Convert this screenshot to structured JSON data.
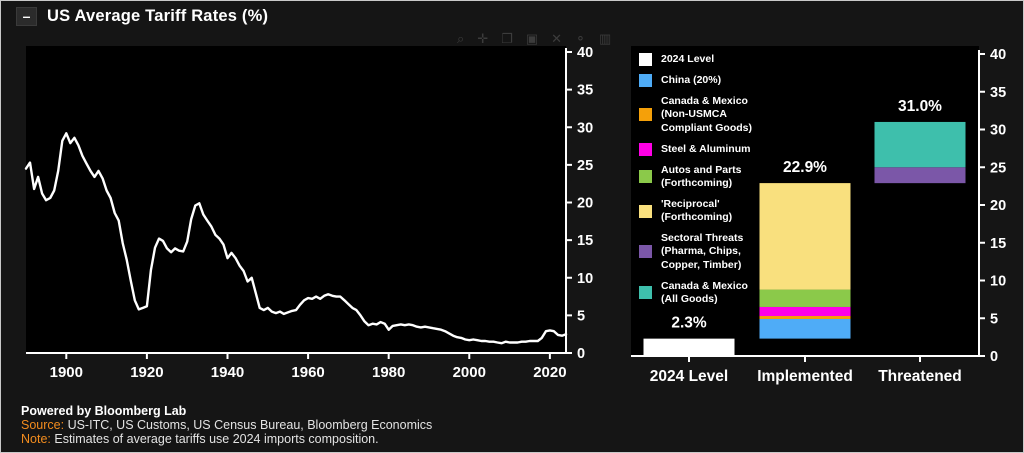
{
  "window": {
    "title": "US Average Tariff Rates (%)",
    "collapse_icon": "–"
  },
  "toolbar": {
    "icons": [
      {
        "name": "zoom-icon",
        "glyph": "⌕"
      },
      {
        "name": "pan-icon",
        "glyph": "✛"
      },
      {
        "name": "expand-icon",
        "glyph": "❐"
      },
      {
        "name": "reset-view-icon",
        "glyph": "▣"
      },
      {
        "name": "close-icon",
        "glyph": "✕"
      },
      {
        "name": "camera-icon",
        "glyph": "⚬"
      },
      {
        "name": "bar-chart-icon",
        "glyph": "▥"
      }
    ]
  },
  "chart_data": [
    {
      "type": "line",
      "title": "US Average Tariff Rates (%), 1890-2024",
      "line_color": "#ffffff",
      "xlim": [
        1890,
        2024
      ],
      "ylim": [
        0,
        40
      ],
      "xticks": [
        1900,
        1920,
        1940,
        1960,
        1980,
        2000,
        2020
      ],
      "yticks": [
        0,
        5,
        10,
        15,
        20,
        25,
        30,
        35,
        40
      ],
      "grid": false,
      "x": [
        1890,
        1891,
        1892,
        1893,
        1894,
        1895,
        1896,
        1897,
        1898,
        1899,
        1900,
        1901,
        1902,
        1903,
        1904,
        1905,
        1906,
        1907,
        1908,
        1909,
        1910,
        1911,
        1912,
        1913,
        1914,
        1915,
        1916,
        1917,
        1918,
        1919,
        1920,
        1921,
        1922,
        1923,
        1924,
        1925,
        1926,
        1927,
        1928,
        1929,
        1930,
        1931,
        1932,
        1933,
        1934,
        1935,
        1936,
        1937,
        1938,
        1939,
        1940,
        1941,
        1942,
        1943,
        1944,
        1945,
        1946,
        1947,
        1948,
        1949,
        1950,
        1951,
        1952,
        1953,
        1954,
        1955,
        1956,
        1957,
        1958,
        1959,
        1960,
        1961,
        1962,
        1963,
        1964,
        1965,
        1966,
        1967,
        1968,
        1969,
        1970,
        1971,
        1972,
        1973,
        1974,
        1975,
        1976,
        1977,
        1978,
        1979,
        1980,
        1981,
        1982,
        1983,
        1984,
        1985,
        1986,
        1987,
        1988,
        1989,
        1990,
        1991,
        1992,
        1993,
        1994,
        1995,
        1996,
        1997,
        1998,
        1999,
        2000,
        2001,
        2002,
        2003,
        2004,
        2005,
        2006,
        2007,
        2008,
        2009,
        2010,
        2011,
        2012,
        2013,
        2014,
        2015,
        2016,
        2017,
        2018,
        2019,
        2020,
        2021,
        2022,
        2023,
        2024
      ],
      "values": [
        24.5,
        25.3,
        21.8,
        23.4,
        21.2,
        20.3,
        20.6,
        21.6,
        24.2,
        28.2,
        29.2,
        27.9,
        28.6,
        27.6,
        26.2,
        25.2,
        24.2,
        23.4,
        24.2,
        23.2,
        21.6,
        20.6,
        18.6,
        17.6,
        14.6,
        12.4,
        9.6,
        7.0,
        5.8,
        6.0,
        6.2,
        11.0,
        14.0,
        15.2,
        14.9,
        13.9,
        13.4,
        13.9,
        13.6,
        13.5,
        14.8,
        17.8,
        19.6,
        19.9,
        18.4,
        17.6,
        16.8,
        15.7,
        15.2,
        14.4,
        12.6,
        13.3,
        12.6,
        11.6,
        10.9,
        9.5,
        10.0,
        8.0,
        6.0,
        5.7,
        6.0,
        5.5,
        5.3,
        5.5,
        5.2,
        5.4,
        5.6,
        5.7,
        6.4,
        7.0,
        7.3,
        7.2,
        7.5,
        7.2,
        7.6,
        7.8,
        7.6,
        7.5,
        7.5,
        7.0,
        6.5,
        6.0,
        5.7,
        5.0,
        4.2,
        3.7,
        3.9,
        3.8,
        4.1,
        3.9,
        3.1,
        3.6,
        3.7,
        3.8,
        3.7,
        3.8,
        3.7,
        3.5,
        3.4,
        3.5,
        3.4,
        3.3,
        3.2,
        3.1,
        2.9,
        2.6,
        2.3,
        2.1,
        2.0,
        1.8,
        1.7,
        1.8,
        1.7,
        1.6,
        1.6,
        1.5,
        1.5,
        1.4,
        1.3,
        1.5,
        1.4,
        1.4,
        1.4,
        1.5,
        1.5,
        1.6,
        1.6,
        1.6,
        2.0,
        2.9,
        3.0,
        2.9,
        2.4,
        2.3,
        2.5
      ]
    },
    {
      "type": "bar",
      "title": "US tariff rate: 2024 level vs implemented vs threatened",
      "categories": [
        "2024 Level",
        "Implemented",
        "Threatened"
      ],
      "totals": [
        "2.3%",
        "22.9%",
        "31.0%"
      ],
      "ylim": [
        0,
        40
      ],
      "yticks": [
        0,
        5,
        10,
        15,
        20,
        25,
        30,
        35,
        40
      ],
      "grid": false,
      "bars": [
        {
          "category": "2024 Level",
          "segments": [
            {
              "name": "2024 Level",
              "from": 0,
              "to": 2.3,
              "color": "#ffffff"
            }
          ]
        },
        {
          "category": "Implemented",
          "segments": [
            {
              "name": "China (20%)",
              "from": 2.3,
              "to": 4.9,
              "color": "#4facf7"
            },
            {
              "name": "Canada & Mexico (Non-USMCA Compliant Goods)",
              "from": 4.9,
              "to": 5.3,
              "color": "#f5a009"
            },
            {
              "name": "Steel & Aluminum",
              "from": 5.3,
              "to": 6.5,
              "color": "#ff00e6"
            },
            {
              "name": "Autos and Parts (Forthcoming)",
              "from": 6.5,
              "to": 8.8,
              "color": "#8bc94a"
            },
            {
              "name": "'Reciprocal' (Forthcoming)",
              "from": 8.8,
              "to": 22.9,
              "color": "#f9e07e"
            }
          ]
        },
        {
          "category": "Threatened",
          "segments": [
            {
              "name": "Sectoral Threats (Pharma, Chips, Copper, Timber)",
              "from": 22.9,
              "to": 25.0,
              "color": "#7b57a8"
            },
            {
              "name": "Canada & Mexico (All Goods)",
              "from": 25.0,
              "to": 31.0,
              "color": "#3ebfac"
            }
          ]
        }
      ]
    }
  ],
  "legend": {
    "items": [
      {
        "label": "2024 Level",
        "color": "#ffffff"
      },
      {
        "label": "China (20%)",
        "color": "#4facf7"
      },
      {
        "label": "Canada & Mexico\n(Non-USMCA\nCompliant Goods)",
        "color": "#f5a009"
      },
      {
        "label": "Steel & Aluminum",
        "color": "#ff00e6"
      },
      {
        "label": "Autos and Parts\n(Forthcoming)",
        "color": "#8bc94a"
      },
      {
        "label": "'Reciprocal'\n(Forthcoming)",
        "color": "#f9e07e"
      },
      {
        "label": "Sectoral Threats\n(Pharma, Chips,\nCopper, Timber)",
        "color": "#7b57a8"
      },
      {
        "label": "Canada & Mexico\n(All Goods)",
        "color": "#3ebfac"
      }
    ]
  },
  "footer": {
    "powered_by": "Powered by Bloomberg Lab",
    "source_label": "Source:",
    "source_text": " US-ITC, US Customs, US Census Bureau, Bloomberg Economics",
    "note_label": "Note:",
    "note_text": " Estimates of average tariffs use 2024 imports composition."
  },
  "colors": {
    "background": "#151515",
    "plot_background": "#000000",
    "axis": "#ffffff",
    "accent_orange": "#f28c1e"
  }
}
